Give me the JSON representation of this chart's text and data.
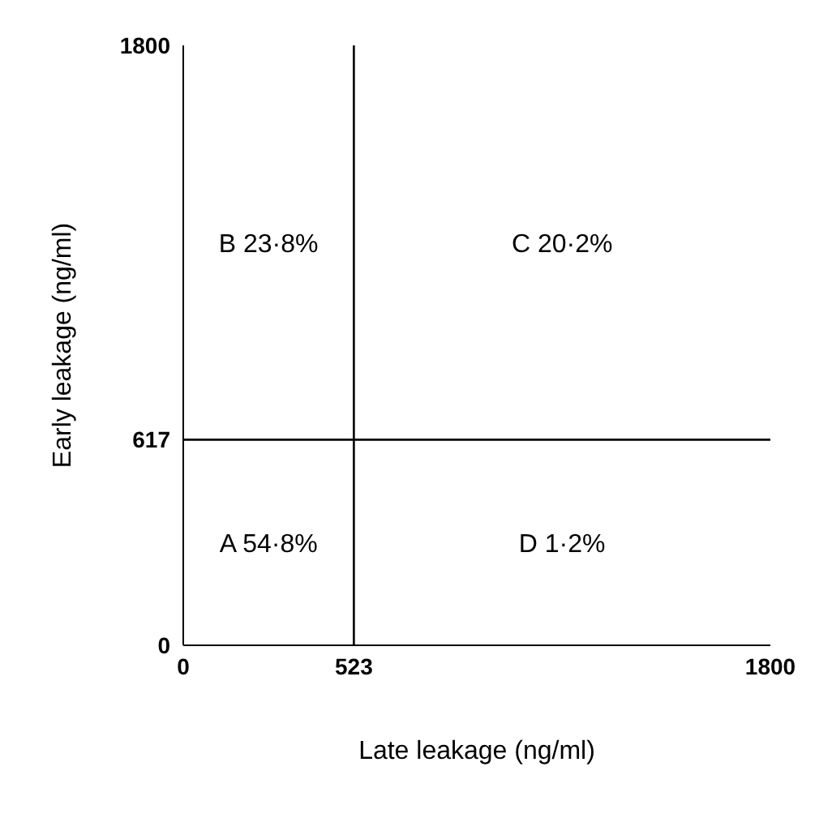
{
  "chart_data": {
    "type": "scatter",
    "xlabel": "Late leakage (ng/ml)",
    "ylabel": "Early leakage (ng/ml)",
    "xlim": [
      0,
      1800
    ],
    "ylim": [
      0,
      1800
    ],
    "xticks": [
      0,
      523,
      1800
    ],
    "yticks": [
      0,
      617,
      1800
    ],
    "ref_lines": [
      {
        "axis": "x",
        "value": 523
      },
      {
        "axis": "y",
        "value": 617
      }
    ],
    "annotations": [
      "B 23·8%",
      "C 20·2%",
      "A 54·8%",
      "D 1·2%"
    ]
  }
}
